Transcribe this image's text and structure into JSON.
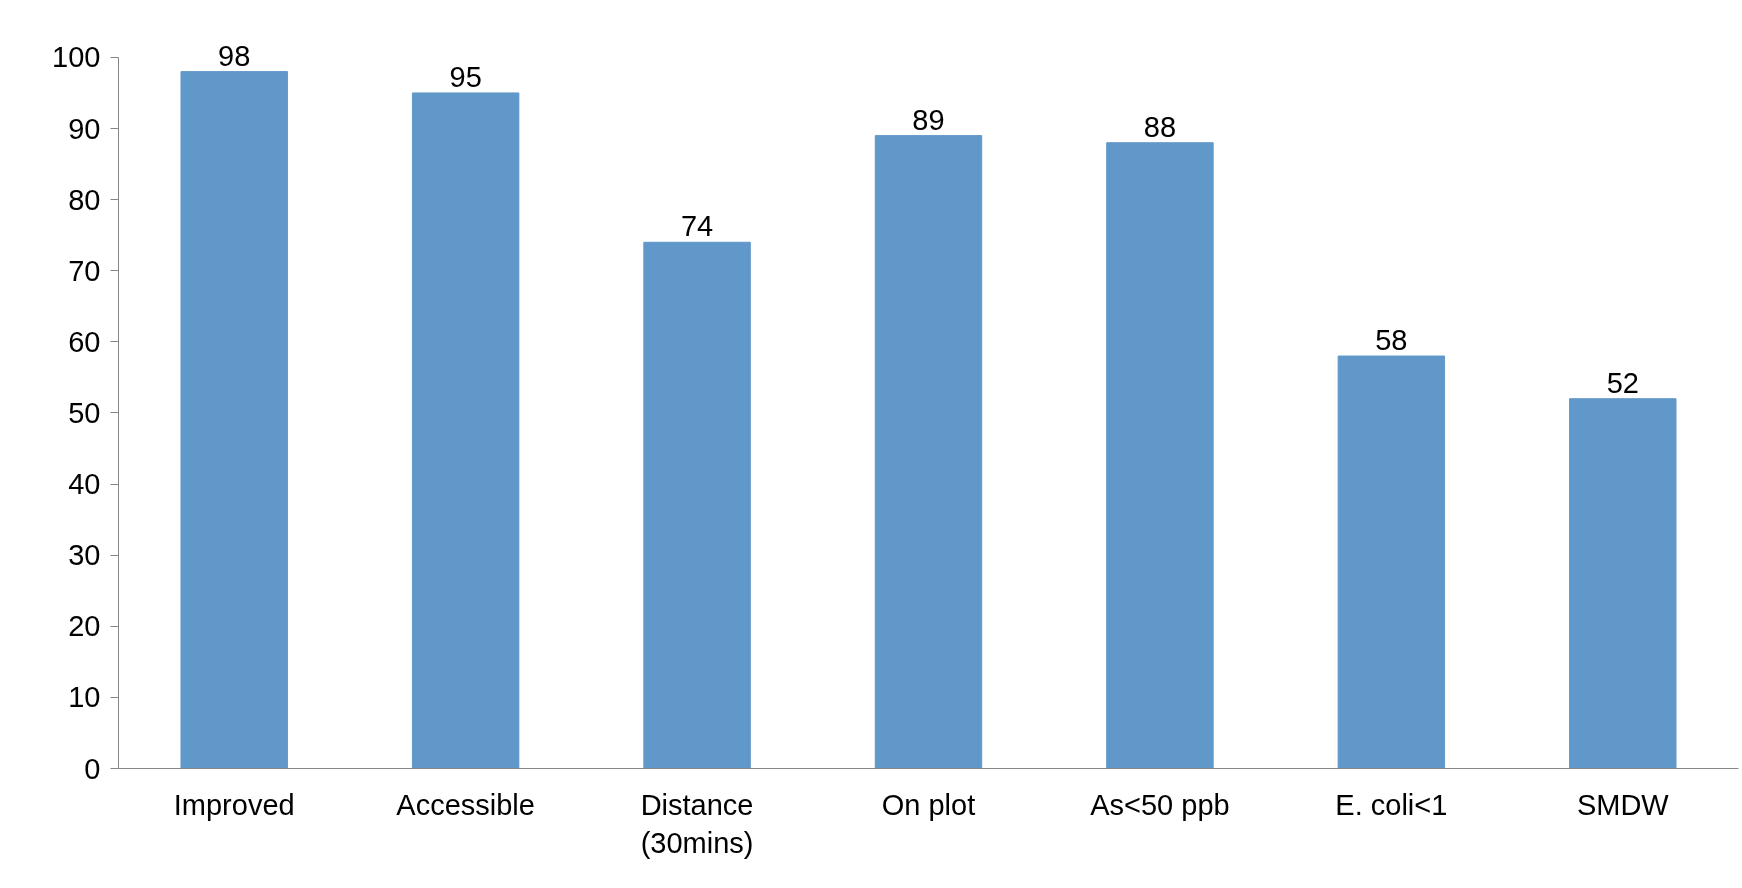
{
  "chart_data": {
    "type": "bar",
    "categories": [
      "Improved",
      "Accessible",
      "Distance\n(30mins)",
      "On plot",
      "As<50 ppb",
      "E. coli<1",
      "SMDW"
    ],
    "values": [
      98,
      95,
      74,
      89,
      88,
      58,
      52
    ],
    "color": "#6198ca",
    "ylim": [
      0,
      100
    ],
    "yticks": [
      0,
      10,
      20,
      30,
      40,
      50,
      60,
      70,
      80,
      90,
      100
    ],
    "data_labels": true,
    "grid": false
  }
}
